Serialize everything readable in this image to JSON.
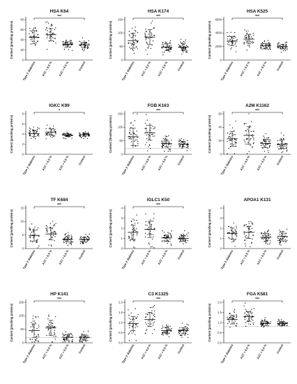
{
  "charts": [
    {
      "title": "HSA K64",
      "ylabel": "Content (pmol/mg proteins)",
      "yticks": [
        0,
        20,
        40,
        60,
        80
      ],
      "ylim": [
        0,
        80
      ],
      "signif": "***",
      "bracket": [
        0,
        3
      ],
      "hline": null,
      "categories": [
        "Type 2 diabetes",
        "A1C > 6.5 %",
        "A1C < 6.5 %",
        "Control"
      ],
      "groups": [
        {
          "mean": 45,
          "sd": 13
        },
        {
          "mean": 50,
          "sd": 12
        },
        {
          "mean": 31,
          "sd": 5
        },
        {
          "mean": 30,
          "sd": 5
        }
      ]
    },
    {
      "title": "HSA K174",
      "ylabel": "Content (pmol/mg proteins)",
      "yticks": [
        0,
        50,
        100,
        150
      ],
      "ylim": [
        0,
        150
      ],
      "signif": "***",
      "bracket": [
        0,
        3
      ],
      "hline": null,
      "categories": [
        "Type 2 diabetes",
        "A1C > 6.5 %",
        "A1C < 6.5 %",
        "Control"
      ],
      "groups": [
        {
          "mean": 72,
          "sd": 28
        },
        {
          "mean": 85,
          "sd": 28
        },
        {
          "mean": 48,
          "sd": 12
        },
        {
          "mean": 48,
          "sd": 12
        }
      ]
    },
    {
      "title": "HSA K525",
      "ylabel": "Content (pmol/mg proteins)",
      "yticks": [
        0,
        2000,
        4000,
        6000
      ],
      "ylim": [
        0,
        6000
      ],
      "signif": "***",
      "bracket": [
        0,
        3
      ],
      "hline": null,
      "categories": [
        "Type 2 diabetes",
        "A1C > 6.5 %",
        "A1C < 6.5 %",
        "Control"
      ],
      "groups": [
        {
          "mean": 2800,
          "sd": 650
        },
        {
          "mean": 3100,
          "sd": 700
        },
        {
          "mean": 2100,
          "sd": 350
        },
        {
          "mean": 2000,
          "sd": 350
        }
      ]
    },
    {
      "title": "IGKC K99",
      "ylabel": "Content (pmol/mg proteins)",
      "yticks": [
        0,
        2,
        4,
        6,
        8
      ],
      "ylim": [
        0,
        8
      ],
      "signif": "*",
      "bracket": [
        0,
        3
      ],
      "hline": null,
      "categories": [
        "Type 2 diabetes",
        "A1C > 6.5 %",
        "A1C < 6.5 %",
        "Control"
      ],
      "groups": [
        {
          "mean": 4.1,
          "sd": 0.55
        },
        {
          "mean": 4.4,
          "sd": 0.6
        },
        {
          "mean": 3.8,
          "sd": 0.3
        },
        {
          "mean": 3.85,
          "sd": 0.3
        }
      ]
    },
    {
      "title": "FGB K163",
      "ylabel": "Content (fmol/mg proteins)",
      "yticks": [
        0,
        50,
        100,
        150
      ],
      "ylim": [
        0,
        150
      ],
      "signif": "***",
      "bracket": [
        0,
        3
      ],
      "hline": 22,
      "categories": [
        "Type 2 diabetes",
        "A1C > 6.5 %",
        "A1C < 6.5 %",
        "Control"
      ],
      "groups": [
        {
          "mean": 65,
          "sd": 32
        },
        {
          "mean": 80,
          "sd": 28
        },
        {
          "mean": 40,
          "sd": 12
        },
        {
          "mean": 38,
          "sd": 10
        }
      ]
    },
    {
      "title": "A2M K1162",
      "ylabel": "Content (pmol/mg proteins)",
      "yticks": [
        0,
        20,
        40,
        60
      ],
      "ylim": [
        0,
        60
      ],
      "signif": "***",
      "bracket": [
        0,
        3
      ],
      "hline": null,
      "categories": [
        "Type 2 diabetes",
        "A1C > 6.5 %",
        "A1C < 6.5 %",
        "Control"
      ],
      "groups": [
        {
          "mean": 23,
          "sd": 11
        },
        {
          "mean": 28,
          "sd": 13
        },
        {
          "mean": 16,
          "sd": 6
        },
        {
          "mean": 15,
          "sd": 6
        }
      ]
    },
    {
      "title": "TF K684",
      "ylabel": "Content (pmol/mg proteins)",
      "yticks": [
        0,
        5,
        10,
        15
      ],
      "ylim": [
        0,
        15
      ],
      "signif": "***",
      "bracket": [
        0,
        3
      ],
      "hline": null,
      "categories": [
        "Type 2 diabetes",
        "A1C > 6.5 %",
        "A1C < 6.5 %",
        "Control"
      ],
      "groups": [
        {
          "mean": 4.8,
          "sd": 2.0
        },
        {
          "mean": 5.4,
          "sd": 2.2
        },
        {
          "mean": 3.4,
          "sd": 0.9
        },
        {
          "mean": 3.3,
          "sd": 0.8
        }
      ]
    },
    {
      "title": "IGLC1 K50",
      "ylabel": "Content (pmol/mg proteins)",
      "yticks": [
        0,
        1,
        2,
        3,
        4
      ],
      "ylim": [
        0,
        4
      ],
      "signif": "***",
      "bracket": [
        0,
        3
      ],
      "hline": null,
      "categories": [
        "Type 2 diabetes",
        "A1C > 6.5 %",
        "A1C < 6.5 %",
        "Control"
      ],
      "groups": [
        {
          "mean": 1.6,
          "sd": 0.7
        },
        {
          "mean": 1.9,
          "sd": 0.8
        },
        {
          "mean": 1.05,
          "sd": 0.3
        },
        {
          "mean": 1.0,
          "sd": 0.3
        }
      ]
    },
    {
      "title": "APOA1 K131",
      "ylabel": "Content (pmol/mg proteins)",
      "yticks": [
        0,
        1,
        2,
        3,
        4
      ],
      "ylim": [
        0,
        4
      ],
      "signif": "",
      "bracket": null,
      "hline": null,
      "categories": [
        "Type 2 diabetes",
        "A1C > 6.5 %",
        "A1C < 6.5 %",
        "Control"
      ],
      "groups": [
        {
          "mean": 1.5,
          "sd": 0.55
        },
        {
          "mean": 1.6,
          "sd": 0.6
        },
        {
          "mean": 1.1,
          "sd": 0.4
        },
        {
          "mean": 1.2,
          "sd": 0.45
        }
      ]
    },
    {
      "title": "HP K141",
      "ylabel": "Content (pmol/mg proteins)",
      "yticks": [
        0,
        50,
        100,
        150
      ],
      "ylim": [
        0,
        150
      ],
      "signif": "***",
      "bracket": [
        0,
        3
      ],
      "hline": 20,
      "categories": [
        "Type 2 diabetes",
        "A1C > 6.5 %",
        "A1C < 6.5 %",
        "Control"
      ],
      "groups": [
        {
          "mean": 45,
          "sd": 25
        },
        {
          "mean": 55,
          "sd": 28
        },
        {
          "mean": 20,
          "sd": 10
        },
        {
          "mean": 20,
          "sd": 10
        }
      ]
    },
    {
      "title": "C3 K1325",
      "ylabel": "Content (pmol/mg proteins)",
      "yticks": [
        0.0,
        0.5,
        1.0,
        1.5,
        2.0
      ],
      "ylim": [
        0,
        2
      ],
      "signif": "***",
      "bracket": [
        0,
        3
      ],
      "hline": null,
      "categories": [
        "Type 2 diabetes",
        "A1C > 6.5 %",
        "A1C < 6.5 %",
        "Control"
      ],
      "groups": [
        {
          "mean": 0.95,
          "sd": 0.35
        },
        {
          "mean": 1.15,
          "sd": 0.35
        },
        {
          "mean": 0.6,
          "sd": 0.15
        },
        {
          "mean": 0.6,
          "sd": 0.15
        }
      ]
    },
    {
      "title": "FGA K581",
      "ylabel": "Content (pmol/mg proteins)",
      "yticks": [
        0.0,
        0.5,
        1.0,
        1.5,
        2.0
      ],
      "ylim": [
        0,
        2
      ],
      "signif": "***",
      "bracket": [
        0,
        3
      ],
      "hline": 0.8,
      "categories": [
        "Type 2 diabetes",
        "A1C > 6.5 %",
        "A1C < 6.5 %",
        "Control"
      ],
      "groups": [
        {
          "mean": 1.15,
          "sd": 0.22
        },
        {
          "mean": 1.3,
          "sd": 0.25
        },
        {
          "mean": 0.95,
          "sd": 0.1
        },
        {
          "mean": 0.95,
          "sd": 0.1
        }
      ]
    }
  ],
  "style": {
    "point_color": "#000000",
    "line_color": "#000000",
    "hline_color": "#555555"
  }
}
